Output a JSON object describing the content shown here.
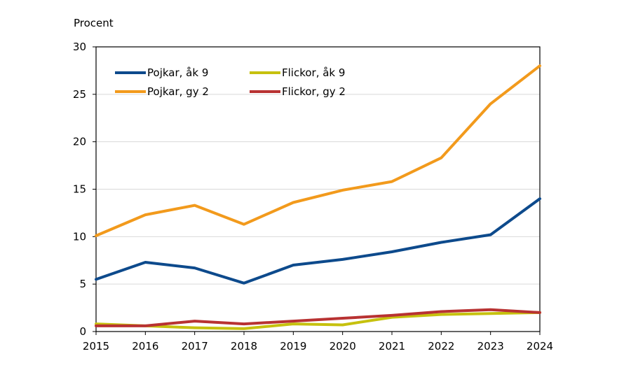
{
  "chart_data": {
    "type": "line",
    "title": "",
    "ylabel": "Procent",
    "xlabel": "",
    "x": [
      "2015",
      "2016",
      "2017",
      "2018",
      "2019",
      "2020",
      "2021",
      "2022",
      "2023",
      "2024"
    ],
    "ylim": [
      0,
      30
    ],
    "yticks": [
      "0",
      "5",
      "10",
      "15",
      "20",
      "25",
      "30"
    ],
    "grid": "horizontal",
    "legend_position": "top-left",
    "series": [
      {
        "name": "Pojkar, åk 9",
        "color": "#0d4a8c",
        "values": [
          5.5,
          7.3,
          6.7,
          5.1,
          7.0,
          7.6,
          8.4,
          9.4,
          10.2,
          14.0
        ]
      },
      {
        "name": "Flickor, åk 9",
        "color": "#c6c10e",
        "values": [
          0.8,
          0.6,
          0.4,
          0.3,
          0.8,
          0.7,
          1.5,
          1.8,
          1.9,
          2.0
        ]
      },
      {
        "name": "Pojkar, gy 2",
        "color": "#f29a1c",
        "values": [
          10.1,
          12.3,
          13.3,
          11.3,
          13.6,
          14.9,
          15.8,
          18.3,
          24.0,
          28.0
        ]
      },
      {
        "name": "Flickor, gy 2",
        "color": "#b83232",
        "values": [
          0.6,
          0.6,
          1.1,
          0.8,
          1.1,
          1.4,
          1.7,
          2.1,
          2.3,
          2.0
        ]
      }
    ]
  }
}
